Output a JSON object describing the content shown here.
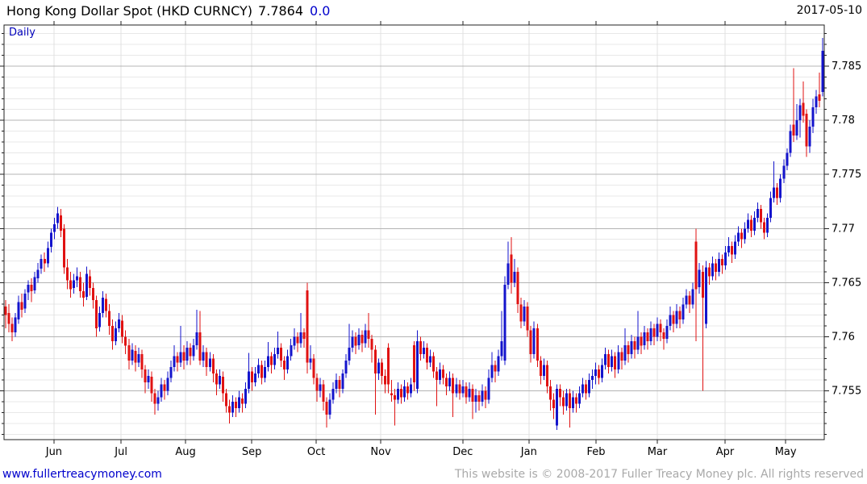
{
  "header": {
    "instrument": "Hong Kong Dollar Spot (HKD CURNCY)",
    "last": "7.7864",
    "change": "0.0",
    "date": "2017-05-10",
    "interval": "Daily"
  },
  "footer": {
    "site": "www.fullertreacymoney.com",
    "copyright": "This website is © 2008-2017 Fuller Treacy Money plc. All rights reserved"
  },
  "chart_data": {
    "type": "candlestick",
    "title": "Hong Kong Dollar Spot (HKD CURNCY)",
    "interval": "Daily",
    "last_close": 7.7864,
    "ylim": [
      7.7505,
      7.7888
    ],
    "y_major_step": 0.005,
    "y_minor_step": 0.001,
    "y_labels": [
      "7.785",
      "7.78",
      "7.775",
      "7.77",
      "7.765",
      "7.76",
      "7.755"
    ],
    "grid": true,
    "legend_position": "none",
    "colors": {
      "up": "#1414cc",
      "down": "#e01212",
      "grid_minor": "#e8e8e8",
      "grid_major": "#b4b4b4",
      "grid_vertical": "#e0e0e0",
      "axis": "#222222",
      "text": "#000000"
    },
    "x_months": [
      {
        "label": "Jun",
        "i": 14.9
      },
      {
        "label": "Jul",
        "i": 35.6
      },
      {
        "label": "Aug",
        "i": 55.5
      },
      {
        "label": "Sep",
        "i": 75.9
      },
      {
        "label": "Oct",
        "i": 95.8
      },
      {
        "label": "Nov",
        "i": 115.7
      },
      {
        "label": "Dec",
        "i": 141.0
      },
      {
        "label": "Jan",
        "i": 161.4
      },
      {
        "label": "Feb",
        "i": 182.1
      },
      {
        "label": "Mar",
        "i": 201.0
      },
      {
        "label": "Apr",
        "i": 221.9
      },
      {
        "label": "May",
        "i": 240.6
      }
    ],
    "price_base": 7.7,
    "price_unit": 0.0001,
    "bars_format": [
      "open",
      "high",
      "low",
      "close"
    ],
    "bars": [
      [
        628,
        634,
        608,
        620
      ],
      [
        622,
        630,
        604,
        612
      ],
      [
        612,
        618,
        596,
        604
      ],
      [
        604,
        622,
        600,
        618
      ],
      [
        616,
        638,
        612,
        632
      ],
      [
        632,
        640,
        618,
        625
      ],
      [
        626,
        644,
        622,
        640
      ],
      [
        641,
        652,
        634,
        648
      ],
      [
        648,
        654,
        632,
        642
      ],
      [
        643,
        660,
        640,
        655
      ],
      [
        654,
        668,
        650,
        662
      ],
      [
        663,
        676,
        658,
        672
      ],
      [
        672,
        678,
        660,
        668
      ],
      [
        668,
        688,
        664,
        682
      ],
      [
        683,
        700,
        678,
        696
      ],
      [
        697,
        710,
        690,
        704
      ],
      [
        705,
        720,
        700,
        714
      ],
      [
        712,
        718,
        692,
        698
      ],
      [
        700,
        704,
        658,
        664
      ],
      [
        664,
        672,
        644,
        652
      ],
      [
        652,
        660,
        636,
        644
      ],
      [
        645,
        658,
        640,
        652
      ],
      [
        652,
        664,
        646,
        656
      ],
      [
        655,
        660,
        636,
        642
      ],
      [
        642,
        650,
        628,
        636
      ],
      [
        637,
        665,
        634,
        658
      ],
      [
        656,
        662,
        638,
        645
      ],
      [
        645,
        650,
        626,
        634
      ],
      [
        634,
        638,
        600,
        608
      ],
      [
        609,
        628,
        605,
        622
      ],
      [
        622,
        642,
        618,
        636
      ],
      [
        635,
        640,
        618,
        624
      ],
      [
        624,
        630,
        602,
        610
      ],
      [
        610,
        616,
        588,
        596
      ],
      [
        596,
        614,
        592,
        608
      ],
      [
        608,
        622,
        604,
        616
      ],
      [
        615,
        620,
        594,
        600
      ],
      [
        600,
        606,
        584,
        592
      ],
      [
        592,
        598,
        570,
        578
      ],
      [
        578,
        594,
        574,
        588
      ],
      [
        587,
        592,
        568,
        576
      ],
      [
        576,
        590,
        572,
        584
      ],
      [
        584,
        588,
        562,
        570
      ],
      [
        570,
        574,
        548,
        558
      ],
      [
        558,
        570,
        552,
        564
      ],
      [
        563,
        568,
        540,
        548
      ],
      [
        548,
        552,
        528,
        538
      ],
      [
        538,
        550,
        532,
        544
      ],
      [
        544,
        562,
        540,
        556
      ],
      [
        556,
        560,
        542,
        550
      ],
      [
        550,
        568,
        546,
        562
      ],
      [
        562,
        578,
        558,
        572
      ],
      [
        572,
        592,
        568,
        582
      ],
      [
        582,
        586,
        568,
        576
      ],
      [
        576,
        610,
        572,
        586
      ],
      [
        586,
        592,
        570,
        578
      ],
      [
        578,
        596,
        574,
        590
      ],
      [
        590,
        594,
        574,
        582
      ],
      [
        582,
        598,
        578,
        592
      ],
      [
        592,
        625,
        588,
        604
      ],
      [
        604,
        624,
        574,
        578
      ],
      [
        578,
        592,
        572,
        586
      ],
      [
        586,
        590,
        564,
        572
      ],
      [
        572,
        586,
        568,
        580
      ],
      [
        580,
        584,
        558,
        566
      ],
      [
        566,
        570,
        546,
        556
      ],
      [
        556,
        570,
        552,
        564
      ],
      [
        563,
        568,
        540,
        548
      ],
      [
        548,
        552,
        530,
        536
      ],
      [
        536,
        542,
        520,
        530
      ],
      [
        530,
        546,
        526,
        540
      ],
      [
        540,
        544,
        526,
        534
      ],
      [
        534,
        550,
        530,
        544
      ],
      [
        543,
        548,
        530,
        538
      ],
      [
        538,
        558,
        534,
        552
      ],
      [
        552,
        585,
        548,
        568
      ],
      [
        568,
        572,
        550,
        558
      ],
      [
        558,
        572,
        554,
        566
      ],
      [
        566,
        580,
        562,
        574
      ],
      [
        574,
        578,
        556,
        562
      ],
      [
        562,
        578,
        558,
        572
      ],
      [
        572,
        595,
        568,
        582
      ],
      [
        582,
        586,
        566,
        574
      ],
      [
        574,
        590,
        570,
        584
      ],
      [
        584,
        605,
        580,
        590
      ],
      [
        590,
        594,
        572,
        578
      ],
      [
        578,
        582,
        560,
        570
      ],
      [
        570,
        588,
        566,
        582
      ],
      [
        582,
        598,
        578,
        592
      ],
      [
        592,
        608,
        588,
        600
      ],
      [
        600,
        604,
        586,
        594
      ],
      [
        594,
        622,
        590,
        604
      ],
      [
        604,
        608,
        590,
        598
      ],
      [
        643,
        650,
        566,
        576
      ],
      [
        576,
        592,
        570,
        580
      ],
      [
        580,
        584,
        556,
        562
      ],
      [
        562,
        566,
        540,
        550
      ],
      [
        550,
        562,
        544,
        556
      ],
      [
        556,
        560,
        532,
        540
      ],
      [
        540,
        544,
        516,
        528
      ],
      [
        528,
        548,
        524,
        542
      ],
      [
        542,
        558,
        538,
        552
      ],
      [
        552,
        566,
        548,
        560
      ],
      [
        560,
        564,
        544,
        552
      ],
      [
        552,
        570,
        548,
        566
      ],
      [
        566,
        584,
        562,
        578
      ],
      [
        578,
        612,
        574,
        590
      ],
      [
        590,
        606,
        586,
        600
      ],
      [
        600,
        604,
        584,
        592
      ],
      [
        592,
        608,
        588,
        602
      ],
      [
        602,
        606,
        586,
        594
      ],
      [
        594,
        612,
        590,
        606
      ],
      [
        606,
        622,
        590,
        598
      ],
      [
        598,
        602,
        576,
        588
      ],
      [
        588,
        592,
        528,
        566
      ],
      [
        566,
        580,
        560,
        576
      ],
      [
        576,
        580,
        556,
        564
      ],
      [
        564,
        570,
        548,
        556
      ],
      [
        590,
        594,
        548,
        556
      ],
      [
        548,
        560,
        540,
        546
      ],
      [
        546,
        552,
        518,
        542
      ],
      [
        542,
        558,
        538,
        552
      ],
      [
        552,
        556,
        538,
        544
      ],
      [
        544,
        560,
        540,
        554
      ],
      [
        554,
        558,
        542,
        548
      ],
      [
        548,
        562,
        544,
        556
      ],
      [
        592,
        596,
        550,
        558
      ],
      [
        552,
        606,
        548,
        596
      ],
      [
        596,
        600,
        578,
        584
      ],
      [
        584,
        596,
        580,
        590
      ],
      [
        590,
        594,
        570,
        576
      ],
      [
        576,
        588,
        572,
        582
      ],
      [
        582,
        586,
        562,
        568
      ],
      [
        568,
        572,
        536,
        560
      ],
      [
        560,
        576,
        556,
        570
      ],
      [
        570,
        574,
        556,
        562
      ],
      [
        562,
        566,
        546,
        554
      ],
      [
        554,
        568,
        550,
        562
      ],
      [
        562,
        566,
        526,
        548
      ],
      [
        548,
        562,
        544,
        556
      ],
      [
        556,
        560,
        542,
        548
      ],
      [
        548,
        560,
        544,
        554
      ],
      [
        554,
        558,
        538,
        544
      ],
      [
        544,
        558,
        540,
        552
      ],
      [
        552,
        556,
        524,
        540
      ],
      [
        540,
        552,
        530,
        546
      ],
      [
        546,
        550,
        532,
        540
      ],
      [
        540,
        556,
        536,
        550
      ],
      [
        550,
        554,
        534,
        542
      ],
      [
        542,
        570,
        538,
        562
      ],
      [
        562,
        586,
        558,
        574
      ],
      [
        574,
        578,
        558,
        568
      ],
      [
        568,
        588,
        564,
        582
      ],
      [
        582,
        624,
        578,
        596
      ],
      [
        578,
        656,
        574,
        648
      ],
      [
        648,
        688,
        644,
        668
      ],
      [
        676,
        692,
        640,
        650
      ],
      [
        650,
        672,
        646,
        660
      ],
      [
        660,
        664,
        622,
        630
      ],
      [
        630,
        636,
        608,
        614
      ],
      [
        614,
        634,
        610,
        628
      ],
      [
        628,
        632,
        600,
        606
      ],
      [
        606,
        610,
        576,
        584
      ],
      [
        584,
        614,
        580,
        608
      ],
      [
        608,
        612,
        572,
        578
      ],
      [
        578,
        582,
        556,
        564
      ],
      [
        564,
        580,
        560,
        574
      ],
      [
        574,
        578,
        548,
        554
      ],
      [
        554,
        560,
        532,
        542
      ],
      [
        542,
        548,
        524,
        534
      ],
      [
        518,
        556,
        514,
        552
      ],
      [
        552,
        556,
        536,
        544
      ],
      [
        544,
        550,
        528,
        536
      ],
      [
        536,
        552,
        532,
        548
      ],
      [
        548,
        552,
        516,
        534
      ],
      [
        534,
        550,
        530,
        544
      ],
      [
        544,
        548,
        530,
        538
      ],
      [
        538,
        554,
        534,
        548
      ],
      [
        548,
        562,
        544,
        556
      ],
      [
        556,
        560,
        542,
        548
      ],
      [
        548,
        566,
        544,
        560
      ],
      [
        560,
        570,
        552,
        564
      ],
      [
        564,
        576,
        556,
        570
      ],
      [
        570,
        574,
        556,
        562
      ],
      [
        562,
        580,
        558,
        574
      ],
      [
        574,
        590,
        570,
        584
      ],
      [
        584,
        588,
        566,
        572
      ],
      [
        572,
        588,
        568,
        582
      ],
      [
        582,
        586,
        562,
        570
      ],
      [
        570,
        592,
        566,
        586
      ],
      [
        586,
        590,
        570,
        578
      ],
      [
        578,
        608,
        574,
        592
      ],
      [
        592,
        596,
        576,
        584
      ],
      [
        584,
        602,
        580,
        596
      ],
      [
        596,
        600,
        580,
        588
      ],
      [
        588,
        624,
        584,
        600
      ],
      [
        600,
        604,
        584,
        592
      ],
      [
        592,
        610,
        588,
        604
      ],
      [
        604,
        608,
        588,
        596
      ],
      [
        596,
        614,
        592,
        608
      ],
      [
        608,
        612,
        592,
        600
      ],
      [
        600,
        618,
        596,
        612
      ],
      [
        612,
        616,
        596,
        604
      ],
      [
        604,
        608,
        588,
        598
      ],
      [
        598,
        616,
        594,
        610
      ],
      [
        610,
        628,
        606,
        620
      ],
      [
        620,
        624,
        604,
        612
      ],
      [
        612,
        630,
        608,
        624
      ],
      [
        624,
        628,
        608,
        616
      ],
      [
        616,
        636,
        612,
        630
      ],
      [
        630,
        644,
        626,
        638
      ],
      [
        638,
        642,
        622,
        630
      ],
      [
        630,
        650,
        626,
        644
      ],
      [
        688,
        700,
        596,
        644
      ],
      [
        646,
        668,
        640,
        662
      ],
      [
        660,
        666,
        550,
        636
      ],
      [
        612,
        670,
        608,
        664
      ],
      [
        664,
        668,
        648,
        656
      ],
      [
        656,
        674,
        652,
        668
      ],
      [
        668,
        672,
        652,
        660
      ],
      [
        660,
        678,
        656,
        672
      ],
      [
        672,
        676,
        658,
        666
      ],
      [
        666,
        684,
        662,
        678
      ],
      [
        678,
        692,
        674,
        684
      ],
      [
        684,
        688,
        668,
        676
      ],
      [
        676,
        694,
        672,
        688
      ],
      [
        688,
        702,
        684,
        696
      ],
      [
        696,
        700,
        682,
        690
      ],
      [
        690,
        706,
        686,
        700
      ],
      [
        700,
        714,
        696,
        708
      ],
      [
        708,
        712,
        692,
        698
      ],
      [
        698,
        716,
        694,
        710
      ],
      [
        710,
        724,
        706,
        718
      ],
      [
        718,
        722,
        700,
        706
      ],
      [
        706,
        710,
        690,
        696
      ],
      [
        696,
        714,
        692,
        710
      ],
      [
        710,
        734,
        706,
        728
      ],
      [
        728,
        762,
        724,
        738
      ],
      [
        738,
        742,
        722,
        728
      ],
      [
        728,
        750,
        724,
        746
      ],
      [
        746,
        764,
        742,
        758
      ],
      [
        758,
        774,
        754,
        770
      ],
      [
        770,
        796,
        766,
        790
      ],
      [
        796,
        848,
        780,
        786
      ],
      [
        786,
        815,
        782,
        800
      ],
      [
        800,
        820,
        784,
        814
      ],
      [
        816,
        836,
        798,
        804
      ],
      [
        806,
        810,
        766,
        776
      ],
      [
        776,
        800,
        770,
        794
      ],
      [
        794,
        820,
        788,
        812
      ],
      [
        812,
        828,
        806,
        822
      ],
      [
        824,
        844,
        812,
        818
      ],
      [
        826,
        876,
        822,
        864
      ]
    ]
  }
}
